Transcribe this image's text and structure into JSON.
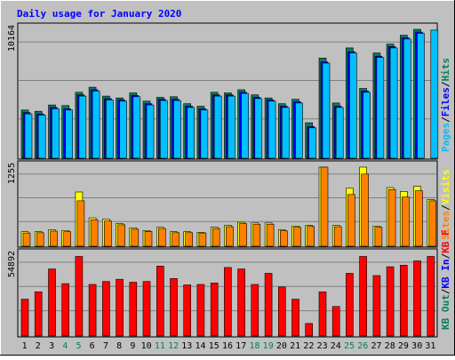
{
  "chart_data": [
    {
      "type": "bar",
      "title": "Daily usage for January 2020",
      "categories": [
        "1",
        "2",
        "3",
        "4",
        "5",
        "6",
        "7",
        "8",
        "9",
        "10",
        "11",
        "12",
        "13",
        "14",
        "15",
        "16",
        "17",
        "18",
        "19",
        "20",
        "21",
        "22",
        "23",
        "24",
        "25",
        "26",
        "27",
        "28",
        "29",
        "30",
        "31"
      ],
      "weekend_days": [
        "4",
        "5",
        "11",
        "12",
        "18",
        "19",
        "25",
        "26"
      ],
      "ymax_label": "10164",
      "ylim": [
        0,
        10164
      ],
      "grid": true,
      "axis_legend": [
        {
          "text": "Hits",
          "color": "#00805c"
        },
        {
          "text": "/",
          "color": "#000000"
        },
        {
          "text": "Files",
          "color": "#0000ff"
        },
        {
          "text": "/",
          "color": "#000000"
        },
        {
          "text": "Pages",
          "color": "#00c0ff"
        }
      ],
      "series": [
        {
          "name": "Hits",
          "color": "#00805c",
          "values": [
            3800,
            3700,
            4200,
            4150,
            5200,
            5600,
            4900,
            4750,
            5150,
            4500,
            4800,
            4850,
            4300,
            4100,
            5200,
            5150,
            5400,
            5000,
            4750,
            4300,
            4650,
            2800,
            7900,
            4350,
            8700,
            5500,
            8300,
            9000,
            9700,
            10164,
            0
          ]
        },
        {
          "name": "Files",
          "color": "#0000ff",
          "values": [
            3600,
            3500,
            4000,
            3900,
            5000,
            5400,
            4700,
            4600,
            4950,
            4300,
            4650,
            4650,
            4100,
            3900,
            5000,
            5000,
            5200,
            4800,
            4600,
            4100,
            4450,
            2500,
            7600,
            4100,
            8400,
            5300,
            8050,
            8800,
            9500,
            9950,
            0
          ]
        },
        {
          "name": "Pages",
          "color": "#00c0ff",
          "values": [
            3500,
            3400,
            3900,
            3800,
            4900,
            5300,
            4600,
            4500,
            4850,
            4200,
            4550,
            4550,
            4000,
            3800,
            4900,
            4900,
            5100,
            4700,
            4500,
            4000,
            4350,
            2400,
            7500,
            4000,
            8300,
            5200,
            7950,
            8700,
            9400,
            9850,
            10100
          ]
        }
      ]
    },
    {
      "type": "bar",
      "categories": [
        "1",
        "2",
        "3",
        "4",
        "5",
        "6",
        "7",
        "8",
        "9",
        "10",
        "11",
        "12",
        "13",
        "14",
        "15",
        "16",
        "17",
        "18",
        "19",
        "20",
        "21",
        "22",
        "23",
        "24",
        "25",
        "26",
        "27",
        "28",
        "29",
        "30",
        "31"
      ],
      "ymax_label": "1255",
      "ylim": [
        0,
        1255
      ],
      "grid": true,
      "axis_legend": [
        {
          "text": "Visits",
          "color": "#ffff00"
        },
        {
          "text": "/",
          "color": "#000000"
        },
        {
          "text": "Sites",
          "color": "#ff8000"
        }
      ],
      "series": [
        {
          "name": "Visits",
          "color": "#ffff00",
          "values": [
            230,
            230,
            260,
            250,
            860,
            450,
            430,
            360,
            290,
            250,
            300,
            230,
            230,
            220,
            300,
            330,
            380,
            370,
            370,
            260,
            320,
            330,
            1255,
            330,
            920,
            1255,
            320,
            930,
            870,
            950,
            740
          ]
        },
        {
          "name": "Sites",
          "color": "#ff8000",
          "values": [
            210,
            215,
            240,
            230,
            720,
            420,
            400,
            340,
            270,
            235,
            280,
            215,
            215,
            210,
            280,
            310,
            360,
            350,
            350,
            245,
            300,
            315,
            1255,
            310,
            820,
            1145,
            300,
            900,
            780,
            880,
            720
          ]
        }
      ]
    },
    {
      "type": "bar",
      "categories": [
        "1",
        "2",
        "3",
        "4",
        "5",
        "6",
        "7",
        "8",
        "9",
        "10",
        "11",
        "12",
        "13",
        "14",
        "15",
        "16",
        "17",
        "18",
        "19",
        "20",
        "21",
        "22",
        "23",
        "24",
        "25",
        "26",
        "27",
        "28",
        "29",
        "30",
        "31"
      ],
      "ymax_label": "54892",
      "ylim": [
        0,
        54892
      ],
      "grid": true,
      "axis_legend": [
        {
          "text": "KB F",
          "color": "#ff0000"
        },
        {
          "text": "/",
          "color": "#000000"
        },
        {
          "text": "KB In",
          "color": "#0000ff"
        },
        {
          "text": "/",
          "color": "#000000"
        },
        {
          "text": "KB Out",
          "color": "#00805c"
        }
      ],
      "series": [
        {
          "name": "KB F",
          "color": "#ff0000",
          "values": [
            25000,
            30000,
            45500,
            35500,
            54000,
            35000,
            37000,
            38500,
            36500,
            37000,
            47500,
            39000,
            34700,
            35000,
            36000,
            46500,
            45500,
            35000,
            42500,
            33300,
            25000,
            8500,
            30000,
            20000,
            42500,
            54000,
            41000,
            47000,
            48000,
            51000,
            54000
          ]
        }
      ]
    }
  ]
}
